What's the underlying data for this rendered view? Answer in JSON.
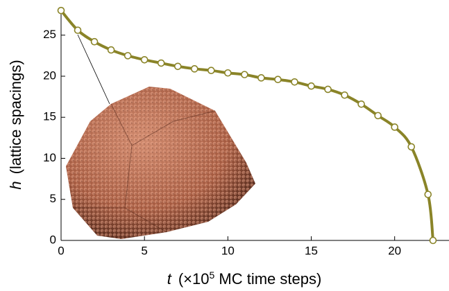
{
  "chart_data": {
    "type": "line",
    "x": [
      0,
      1,
      2,
      3,
      4,
      5,
      6,
      7,
      8,
      9,
      10,
      11,
      12,
      13,
      14,
      15,
      16,
      17,
      18,
      19,
      20,
      21,
      22,
      22.3
    ],
    "values": [
      28.0,
      25.6,
      24.2,
      23.2,
      22.5,
      22.0,
      21.6,
      21.2,
      20.9,
      20.7,
      20.4,
      20.2,
      19.8,
      19.6,
      19.3,
      18.8,
      18.4,
      17.7,
      16.6,
      15.2,
      13.8,
      11.4,
      5.6,
      0
    ],
    "color": "#8a8428",
    "xlim": [
      0,
      23.3
    ],
    "ylim": [
      0,
      28.1
    ],
    "xticks": [
      0,
      5,
      10,
      15,
      20
    ],
    "yticks": [
      0,
      5,
      10,
      15,
      20,
      25
    ],
    "xlabel": {
      "var": "t",
      "text": "(×10",
      "sup": "5",
      "rest": " MC time steps)"
    },
    "ylabel": {
      "var": "h",
      "text": "(lattice spacings)"
    }
  }
}
